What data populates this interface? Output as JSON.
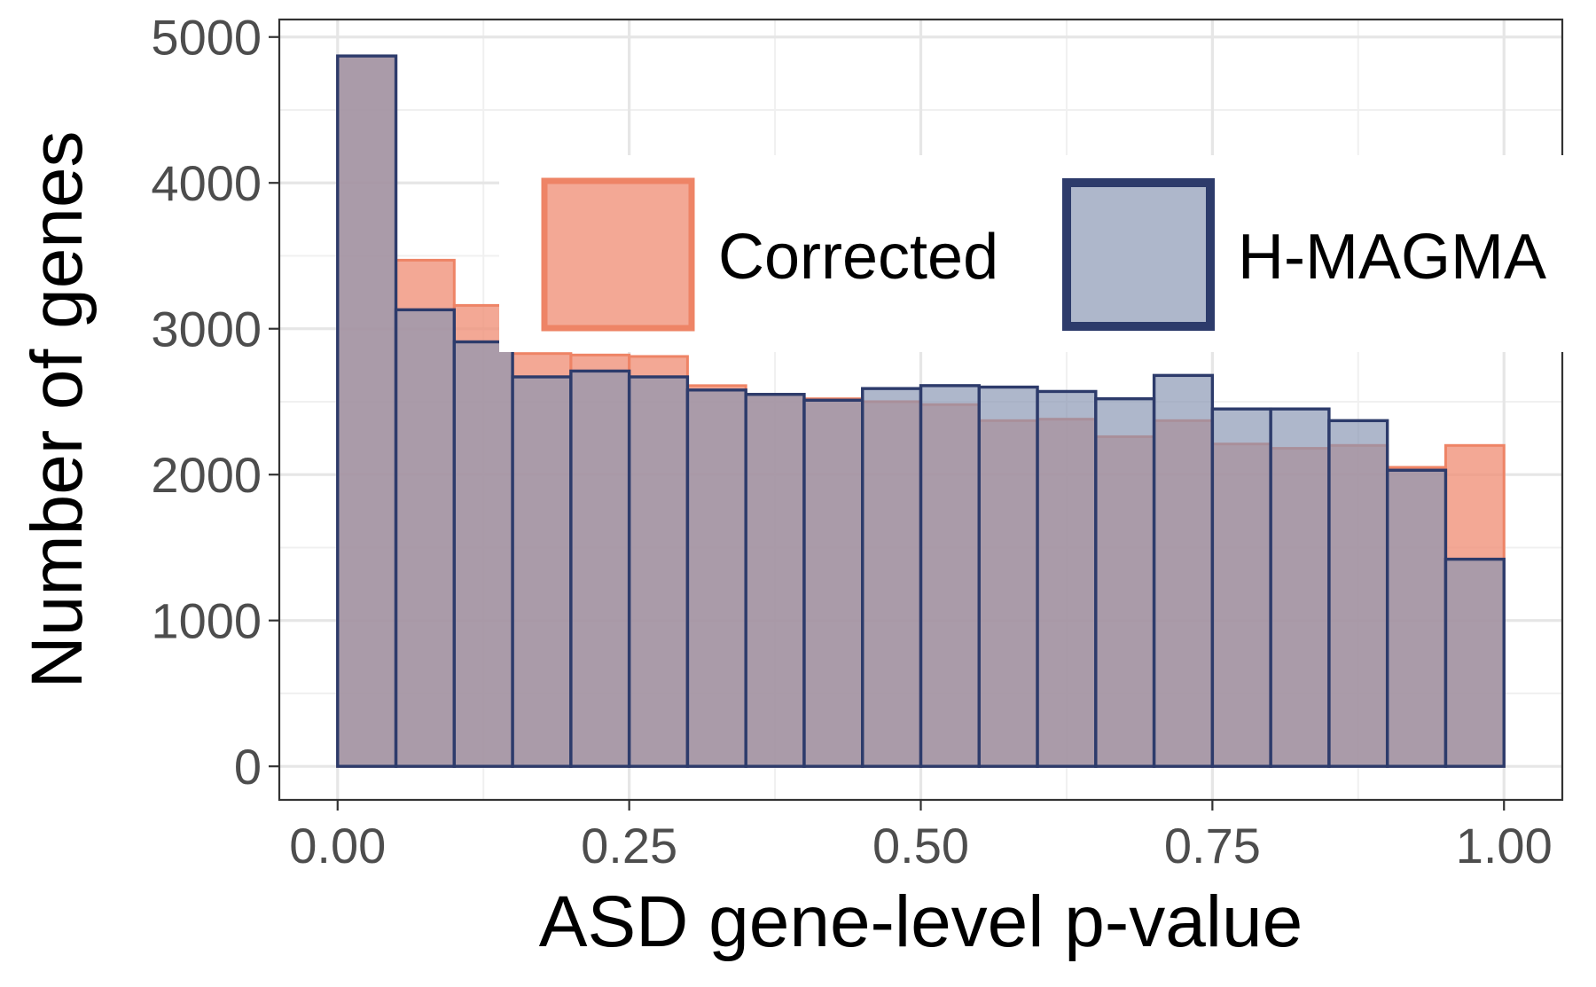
{
  "chart_data": {
    "type": "bar",
    "subtype": "overlaid-histogram",
    "title": "",
    "xlabel": "ASD gene-level p-value",
    "ylabel": "Number of genes",
    "xlim": [
      -0.05,
      1.05
    ],
    "ylim": [
      -230,
      5120
    ],
    "xticks": [
      0.0,
      0.25,
      0.5,
      0.75,
      1.0
    ],
    "xtick_labels": [
      "0.00",
      "0.25",
      "0.50",
      "0.75",
      "1.00"
    ],
    "yticks": [
      0,
      1000,
      2000,
      3000,
      4000,
      5000
    ],
    "ytick_labels": [
      "0",
      "1000",
      "2000",
      "3000",
      "4000",
      "5000"
    ],
    "grid": true,
    "legend_position": "top-right (inside plot)",
    "bin_edges": [
      0.0,
      0.05,
      0.1,
      0.15,
      0.2,
      0.25,
      0.3,
      0.35,
      0.4,
      0.45,
      0.5,
      0.55,
      0.6,
      0.65,
      0.7,
      0.75,
      0.8,
      0.85,
      0.9,
      0.95,
      1.0
    ],
    "series": [
      {
        "name": "Corrected",
        "fill": "#f08f77",
        "stroke": "#ee8466",
        "values": [
          4870,
          3470,
          3160,
          2830,
          2820,
          2810,
          2610,
          2550,
          2520,
          2500,
          2480,
          2370,
          2380,
          2260,
          2370,
          2210,
          2180,
          2200,
          2050,
          2200
        ]
      },
      {
        "name": "H-MAGMA",
        "fill": "#8895b3",
        "stroke": "#2d3b6b",
        "values": [
          4870,
          3130,
          2910,
          2670,
          2710,
          2670,
          2580,
          2550,
          2510,
          2590,
          2610,
          2600,
          2570,
          2520,
          2680,
          2450,
          2450,
          2370,
          2030,
          1420
        ]
      }
    ]
  }
}
